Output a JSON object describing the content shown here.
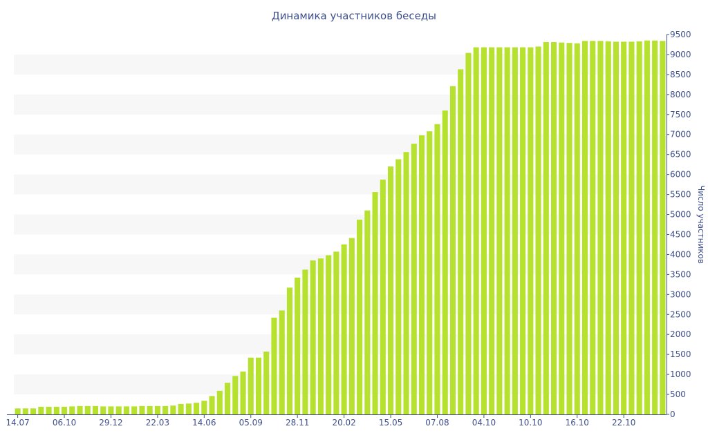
{
  "chart_data": {
    "type": "bar",
    "title": "Динамика участников беседы",
    "xlabel": "",
    "ylabel": "Число участников",
    "ylim": [
      0,
      9500
    ],
    "yticks": [
      0,
      500,
      1000,
      1500,
      2000,
      2500,
      3000,
      3500,
      4000,
      4500,
      5000,
      5500,
      6000,
      6500,
      7000,
      7500,
      8000,
      8500,
      9000,
      9500
    ],
    "xtick_labels": [
      {
        "index": 0,
        "label": "14.07"
      },
      {
        "index": 6,
        "label": "06.10"
      },
      {
        "index": 12,
        "label": "29.12"
      },
      {
        "index": 18,
        "label": "22.03"
      },
      {
        "index": 24,
        "label": "14.06"
      },
      {
        "index": 30,
        "label": "05.09"
      },
      {
        "index": 36,
        "label": "28.11"
      },
      {
        "index": 42,
        "label": "20.02"
      },
      {
        "index": 48,
        "label": "15.05"
      },
      {
        "index": 54,
        "label": "07.08"
      },
      {
        "index": 60,
        "label": "04.10"
      },
      {
        "index": 66,
        "label": "10.10"
      },
      {
        "index": 72,
        "label": "16.10"
      },
      {
        "index": 78,
        "label": "22.10"
      }
    ],
    "series": [
      {
        "values": [
          150,
          150,
          150,
          190,
          190,
          190,
          190,
          200,
          210,
          210,
          210,
          200,
          200,
          200,
          200,
          200,
          210,
          210,
          210,
          210,
          220,
          260,
          270,
          290,
          340,
          460,
          590,
          790,
          960,
          1070,
          1420,
          1420,
          1570,
          2420,
          2600,
          3170,
          3420,
          3620,
          3850,
          3900,
          3980,
          4070,
          4250,
          4410,
          4870,
          5100,
          5560,
          5870,
          6200,
          6380,
          6560,
          6770,
          6980,
          7080,
          7260,
          7600,
          8210,
          8630,
          9040,
          9180,
          9180,
          9180,
          9180,
          9180,
          9180,
          9180,
          9180,
          9200,
          9310,
          9310,
          9300,
          9290,
          9280,
          9340,
          9340,
          9340,
          9330,
          9320,
          9320,
          9320,
          9330,
          9350,
          9350,
          9340
        ]
      }
    ],
    "colors": {
      "bar": "#b6e12f",
      "band": "#f7f7f7",
      "text": "#3e4f8c"
    },
    "grid": "alternating horizontal bands"
  }
}
